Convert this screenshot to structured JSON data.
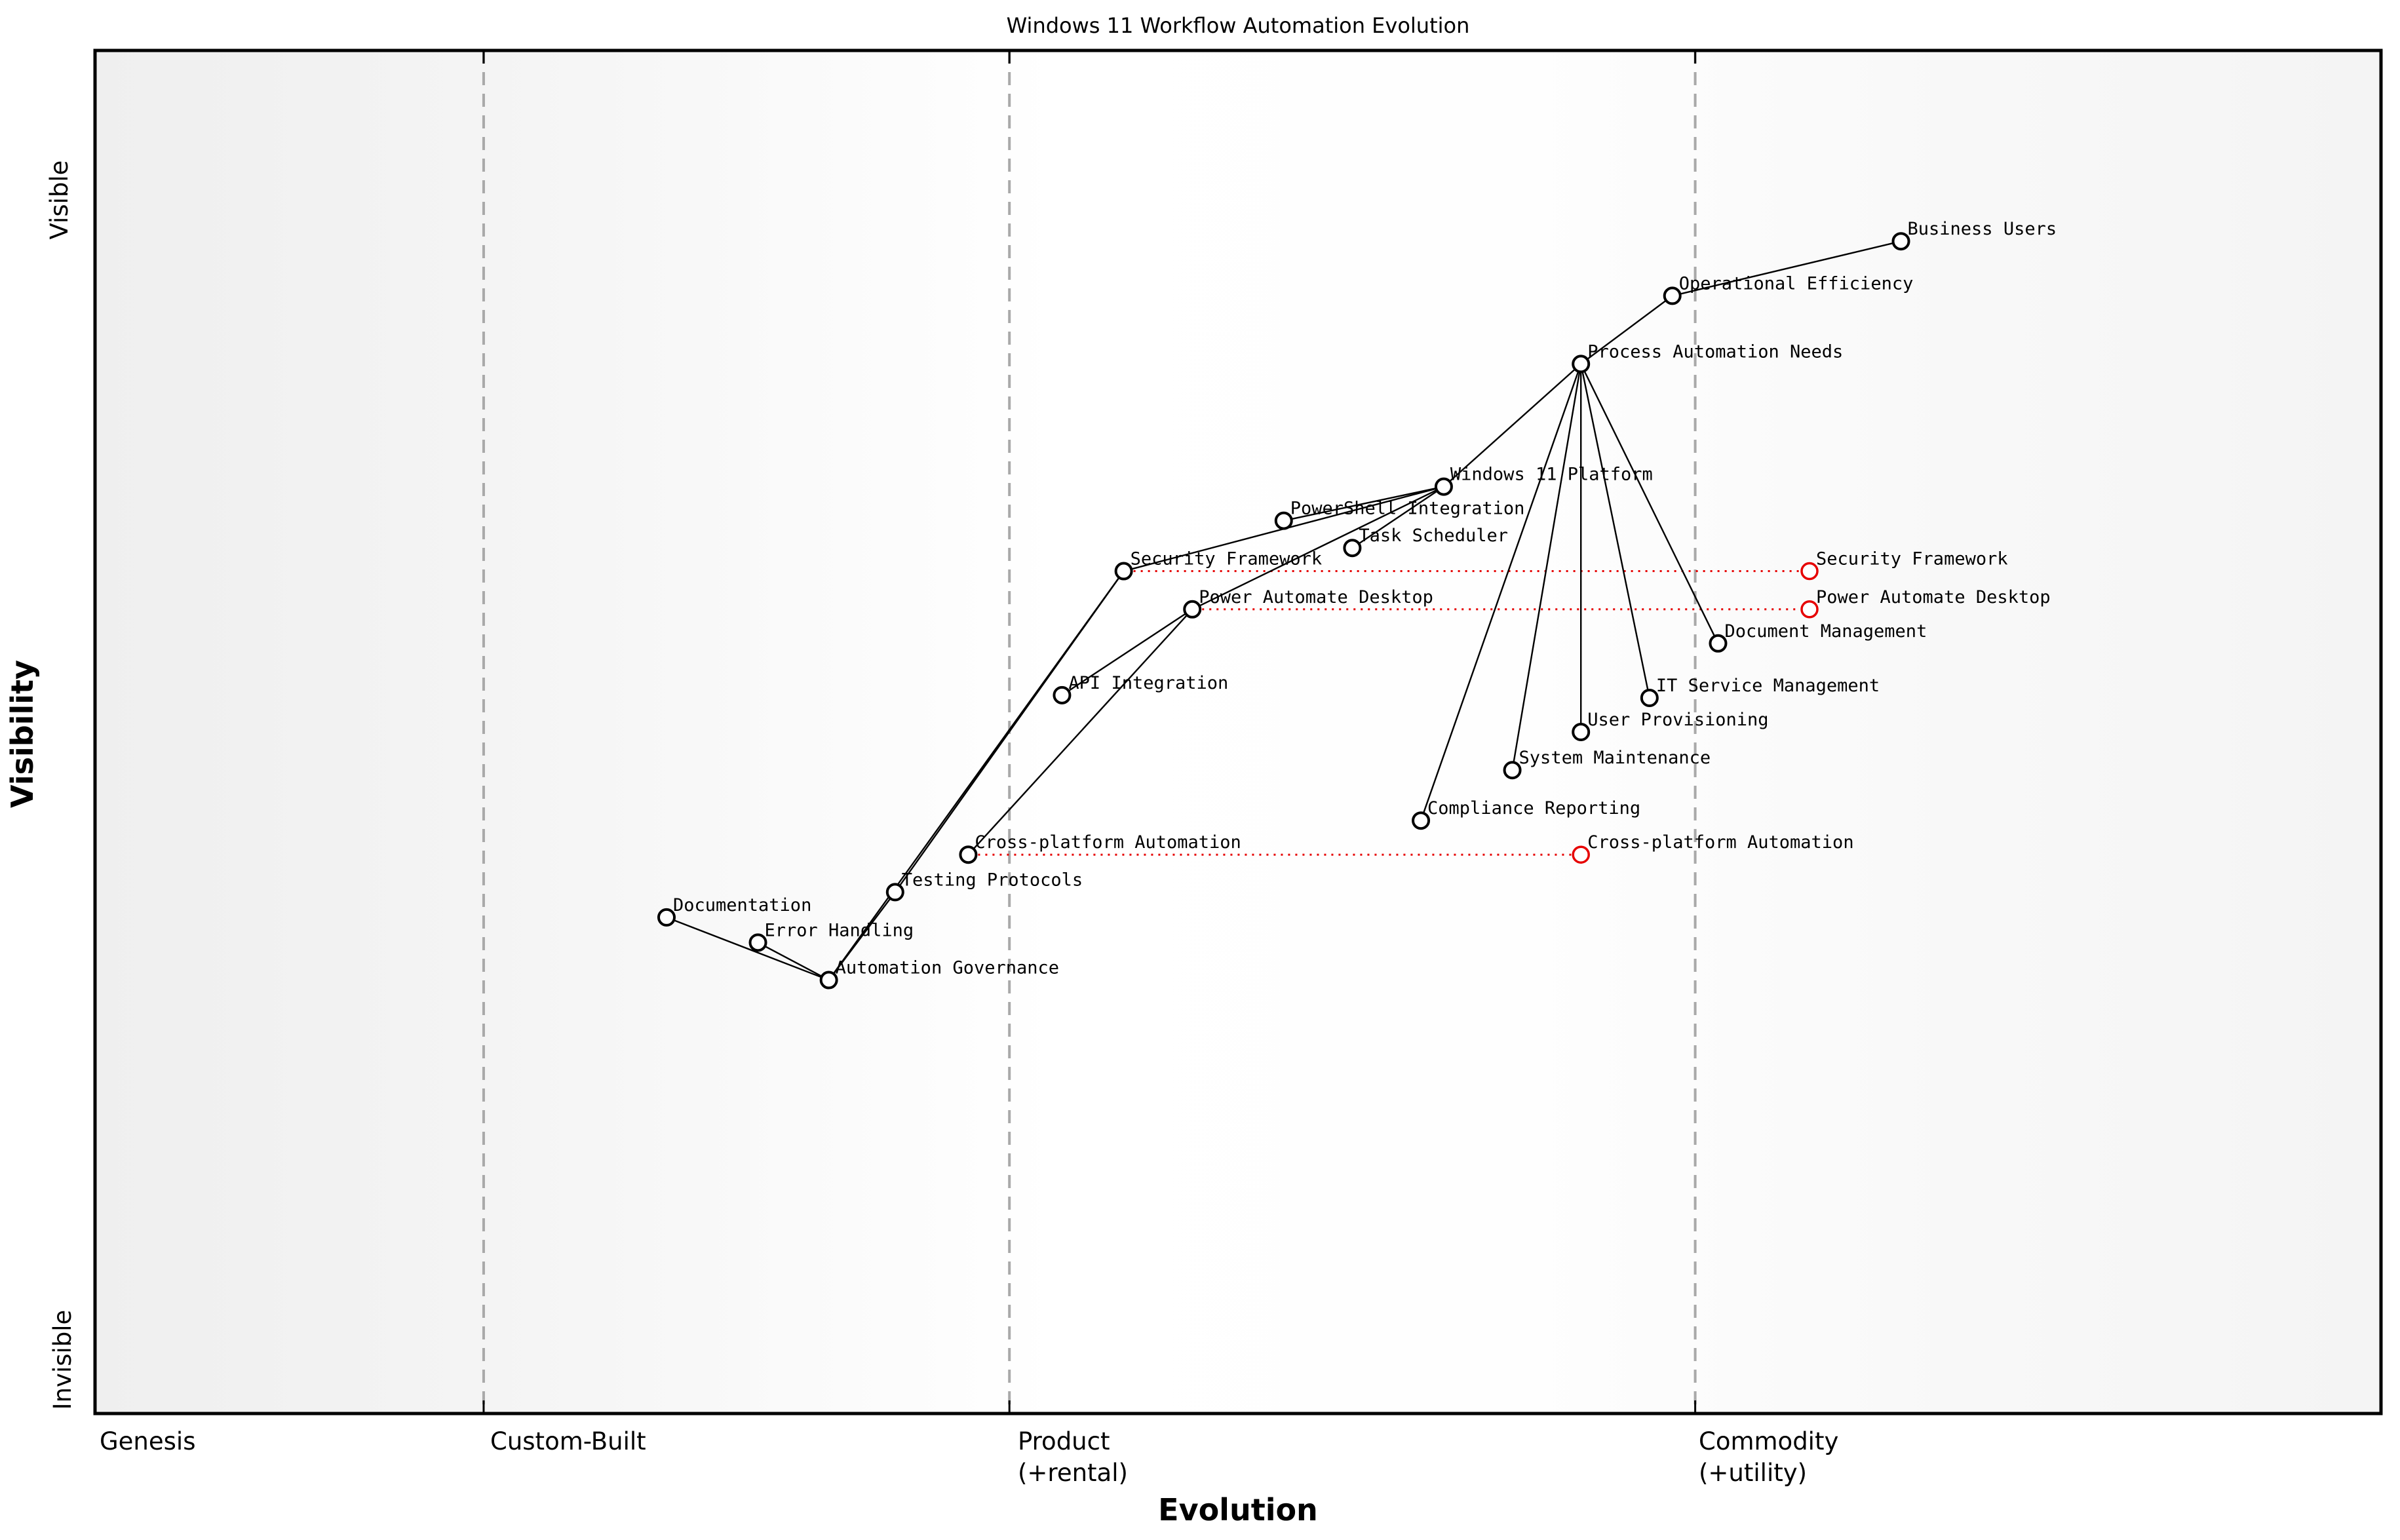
{
  "title": "Windows 11 Workflow Automation Evolution",
  "axes": {
    "x": {
      "title": "Evolution",
      "stage_genesis": "Genesis",
      "stage_custom": "Custom-Built",
      "stage_product_line1": "Product",
      "stage_product_line2": "(+rental)",
      "stage_commodity_line1": "Commodity",
      "stage_commodity_line2": "(+utility)"
    },
    "y": {
      "title": "Visibility",
      "top_label": "Visible",
      "bottom_label": "Invisible"
    }
  },
  "colors": {
    "edge": "#000000",
    "node_stroke": "#000000",
    "node_fill": "#ffffff",
    "evolved": "#e60000",
    "boundary_line": "#a9a9a9",
    "text": "#000000"
  },
  "chart_data": {
    "type": "scatter",
    "variant": "wardley-map",
    "title": "Windows 11 Workflow Automation Evolution",
    "xlabel": "Evolution",
    "ylabel": "Visibility",
    "xlim": [
      0,
      1
    ],
    "ylim": [
      0,
      1
    ],
    "grid": false,
    "stage_boundaries": [
      0.17,
      0.4,
      0.7
    ],
    "stages": [
      "Genesis",
      "Custom-Built",
      "Product (+rental)",
      "Commodity (+utility)"
    ],
    "nodes": [
      {
        "id": "business-users",
        "label": "Business Users",
        "x": 0.79,
        "y": 0.86
      },
      {
        "id": "operational-efficiency",
        "label": "Operational Efficiency",
        "x": 0.69,
        "y": 0.82
      },
      {
        "id": "process-automation-needs",
        "label": "Process Automation Needs",
        "x": 0.65,
        "y": 0.77
      },
      {
        "id": "windows-11-platform",
        "label": "Windows 11 Platform",
        "x": 0.59,
        "y": 0.68
      },
      {
        "id": "powershell-integration",
        "label": "PowerShell Integration",
        "x": 0.52,
        "y": 0.655
      },
      {
        "id": "task-scheduler",
        "label": "Task Scheduler",
        "x": 0.55,
        "y": 0.635
      },
      {
        "id": "security-framework",
        "label": "Security Framework",
        "x": 0.45,
        "y": 0.618
      },
      {
        "id": "power-automate-desktop",
        "label": "Power Automate Desktop",
        "x": 0.48,
        "y": 0.59
      },
      {
        "id": "document-management",
        "label": "Document Management",
        "x": 0.71,
        "y": 0.565
      },
      {
        "id": "it-service-management",
        "label": "IT Service Management",
        "x": 0.68,
        "y": 0.525
      },
      {
        "id": "user-provisioning",
        "label": "User Provisioning",
        "x": 0.65,
        "y": 0.5
      },
      {
        "id": "system-maintenance",
        "label": "System Maintenance",
        "x": 0.62,
        "y": 0.472
      },
      {
        "id": "compliance-reporting",
        "label": "Compliance Reporting",
        "x": 0.58,
        "y": 0.435
      },
      {
        "id": "api-integration",
        "label": "API Integration",
        "x": 0.423,
        "y": 0.527
      },
      {
        "id": "cross-platform-automation",
        "label": "Cross-platform Automation",
        "x": 0.382,
        "y": 0.41
      },
      {
        "id": "testing-protocols",
        "label": "Testing Protocols",
        "x": 0.35,
        "y": 0.3825
      },
      {
        "id": "documentation",
        "label": "Documentation",
        "x": 0.25,
        "y": 0.364
      },
      {
        "id": "error-handling",
        "label": "Error Handling",
        "x": 0.29,
        "y": 0.3455
      },
      {
        "id": "automation-governance",
        "label": "Automation Governance",
        "x": 0.321,
        "y": 0.318
      }
    ],
    "edges": [
      [
        "business-users",
        "operational-efficiency"
      ],
      [
        "operational-efficiency",
        "process-automation-needs"
      ],
      [
        "process-automation-needs",
        "windows-11-platform"
      ],
      [
        "process-automation-needs",
        "document-management"
      ],
      [
        "process-automation-needs",
        "it-service-management"
      ],
      [
        "process-automation-needs",
        "user-provisioning"
      ],
      [
        "process-automation-needs",
        "system-maintenance"
      ],
      [
        "process-automation-needs",
        "compliance-reporting"
      ],
      [
        "windows-11-platform",
        "powershell-integration"
      ],
      [
        "windows-11-platform",
        "task-scheduler"
      ],
      [
        "windows-11-platform",
        "security-framework"
      ],
      [
        "windows-11-platform",
        "power-automate-desktop"
      ],
      [
        "power-automate-desktop",
        "api-integration"
      ],
      [
        "power-automate-desktop",
        "cross-platform-automation"
      ],
      [
        "security-framework",
        "testing-protocols"
      ],
      [
        "security-framework",
        "automation-governance"
      ],
      [
        "testing-protocols",
        "automation-governance"
      ],
      [
        "documentation",
        "automation-governance"
      ],
      [
        "error-handling",
        "automation-governance"
      ]
    ],
    "evolutions": [
      {
        "from": "security-framework",
        "label": "Security Framework",
        "x": 0.75
      },
      {
        "from": "power-automate-desktop",
        "label": "Power Automate Desktop",
        "x": 0.75
      },
      {
        "from": "cross-platform-automation",
        "label": "Cross-platform Automation",
        "x": 0.65
      }
    ]
  }
}
